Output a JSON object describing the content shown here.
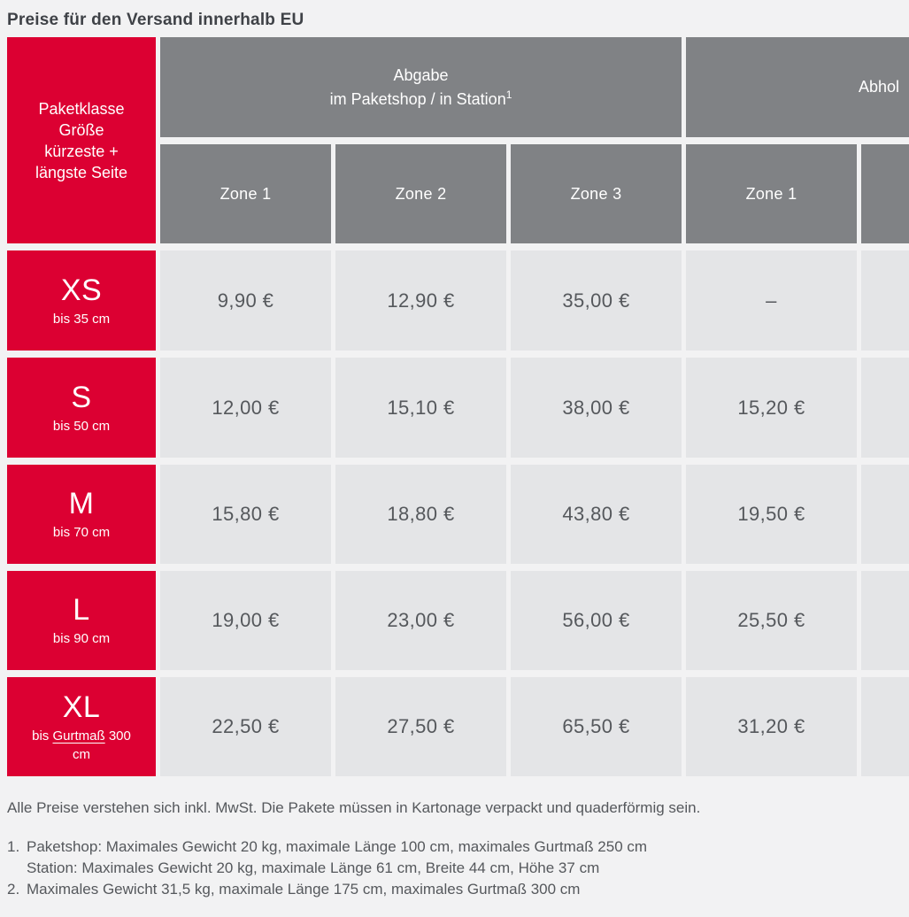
{
  "title": "Preise für den Versand innerhalb EU",
  "colors": {
    "brand_red": "#DC0032",
    "header_gray": "#808285",
    "cell_gray": "#E4E5E7",
    "page_bg": "#F2F2F3",
    "text_dark": "#3F4247",
    "text_mid": "#55585C"
  },
  "table": {
    "corner_header": {
      "line1": "Paketklasse",
      "line2": "Größe",
      "line3": "kürzeste +",
      "line4": "längste Seite"
    },
    "groups": {
      "abgabe": {
        "line1": "Abgabe",
        "line2": "im Paketshop / in Station",
        "sup": "1"
      },
      "abholung": {
        "label_visible": "Abhol"
      }
    },
    "zone_headers": [
      "Zone 1",
      "Zone 2",
      "Zone 3",
      "Zone 1",
      ""
    ],
    "rows": [
      {
        "size": "XS",
        "limit": "bis 35 cm",
        "values": [
          "9,90 €",
          "12,90 €",
          "35,00 €",
          "–",
          ""
        ]
      },
      {
        "size": "S",
        "limit": "bis 50 cm",
        "values": [
          "12,00 €",
          "15,10 €",
          "38,00 €",
          "15,20 €",
          ""
        ]
      },
      {
        "size": "M",
        "limit": "bis 70 cm",
        "values": [
          "15,80 €",
          "18,80 €",
          "43,80 €",
          "19,50 €",
          ""
        ]
      },
      {
        "size": "L",
        "limit": "bis 90 cm",
        "values": [
          "19,00 €",
          "23,00 €",
          "56,00 €",
          "25,50 €",
          ""
        ]
      },
      {
        "size": "XL",
        "limit_prefix": "bis",
        "limit_link": "Gurtmaß",
        "limit_suffix": "300 cm",
        "values": [
          "22,50 €",
          "27,50 €",
          "65,50 €",
          "31,20 €",
          ""
        ]
      }
    ]
  },
  "footer": {
    "note": "Alle Preise verstehen sich inkl. MwSt. Die Pakete müssen in Kartonage verpackt und quaderförmig sein.",
    "footnotes": [
      {
        "marker": "1.",
        "line1": "Paketshop: Maximales Gewicht 20 kg, maximale Länge 100 cm, maximales Gurtmaß 250 cm",
        "line2": "Station: Maximales Gewicht 20 kg, maximale Länge 61 cm, Breite 44 cm, Höhe 37 cm"
      },
      {
        "marker": "2.",
        "line1": "Maximales Gewicht 31,5 kg, maximale Länge 175 cm, maximales Gurtmaß 300 cm",
        "line2": ""
      }
    ]
  }
}
